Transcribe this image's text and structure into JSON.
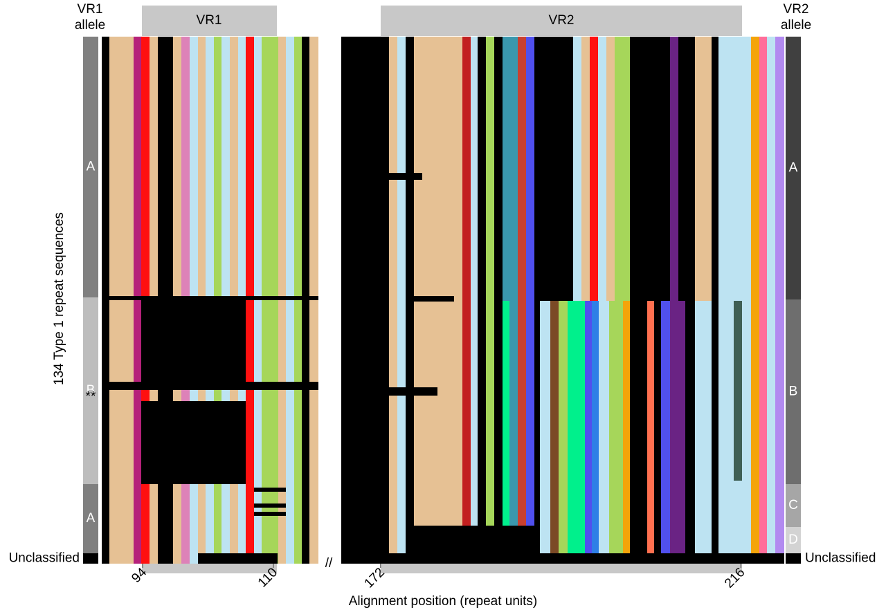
{
  "y_axis_label": "134 Type 1 repeat sequences",
  "x_axis_label": "Alignment position (repeat units)",
  "break_mark": "//",
  "vr1": {
    "header": "VR1",
    "allele_title": [
      "VR1",
      "allele"
    ],
    "xlim": [
      89,
      115.5
    ],
    "ticks": [
      94,
      110
    ],
    "alleles": [
      "A",
      "B",
      "A",
      "Unclassified"
    ],
    "marker": "**"
  },
  "vr2": {
    "header": "VR2",
    "allele_title": [
      "VR2",
      "allele"
    ],
    "xlim": [
      167.2,
      221.3
    ],
    "ticks": [
      172,
      216
    ],
    "alleles": [
      "A",
      "B",
      "C",
      "D",
      "Unclassified"
    ]
  }
}
